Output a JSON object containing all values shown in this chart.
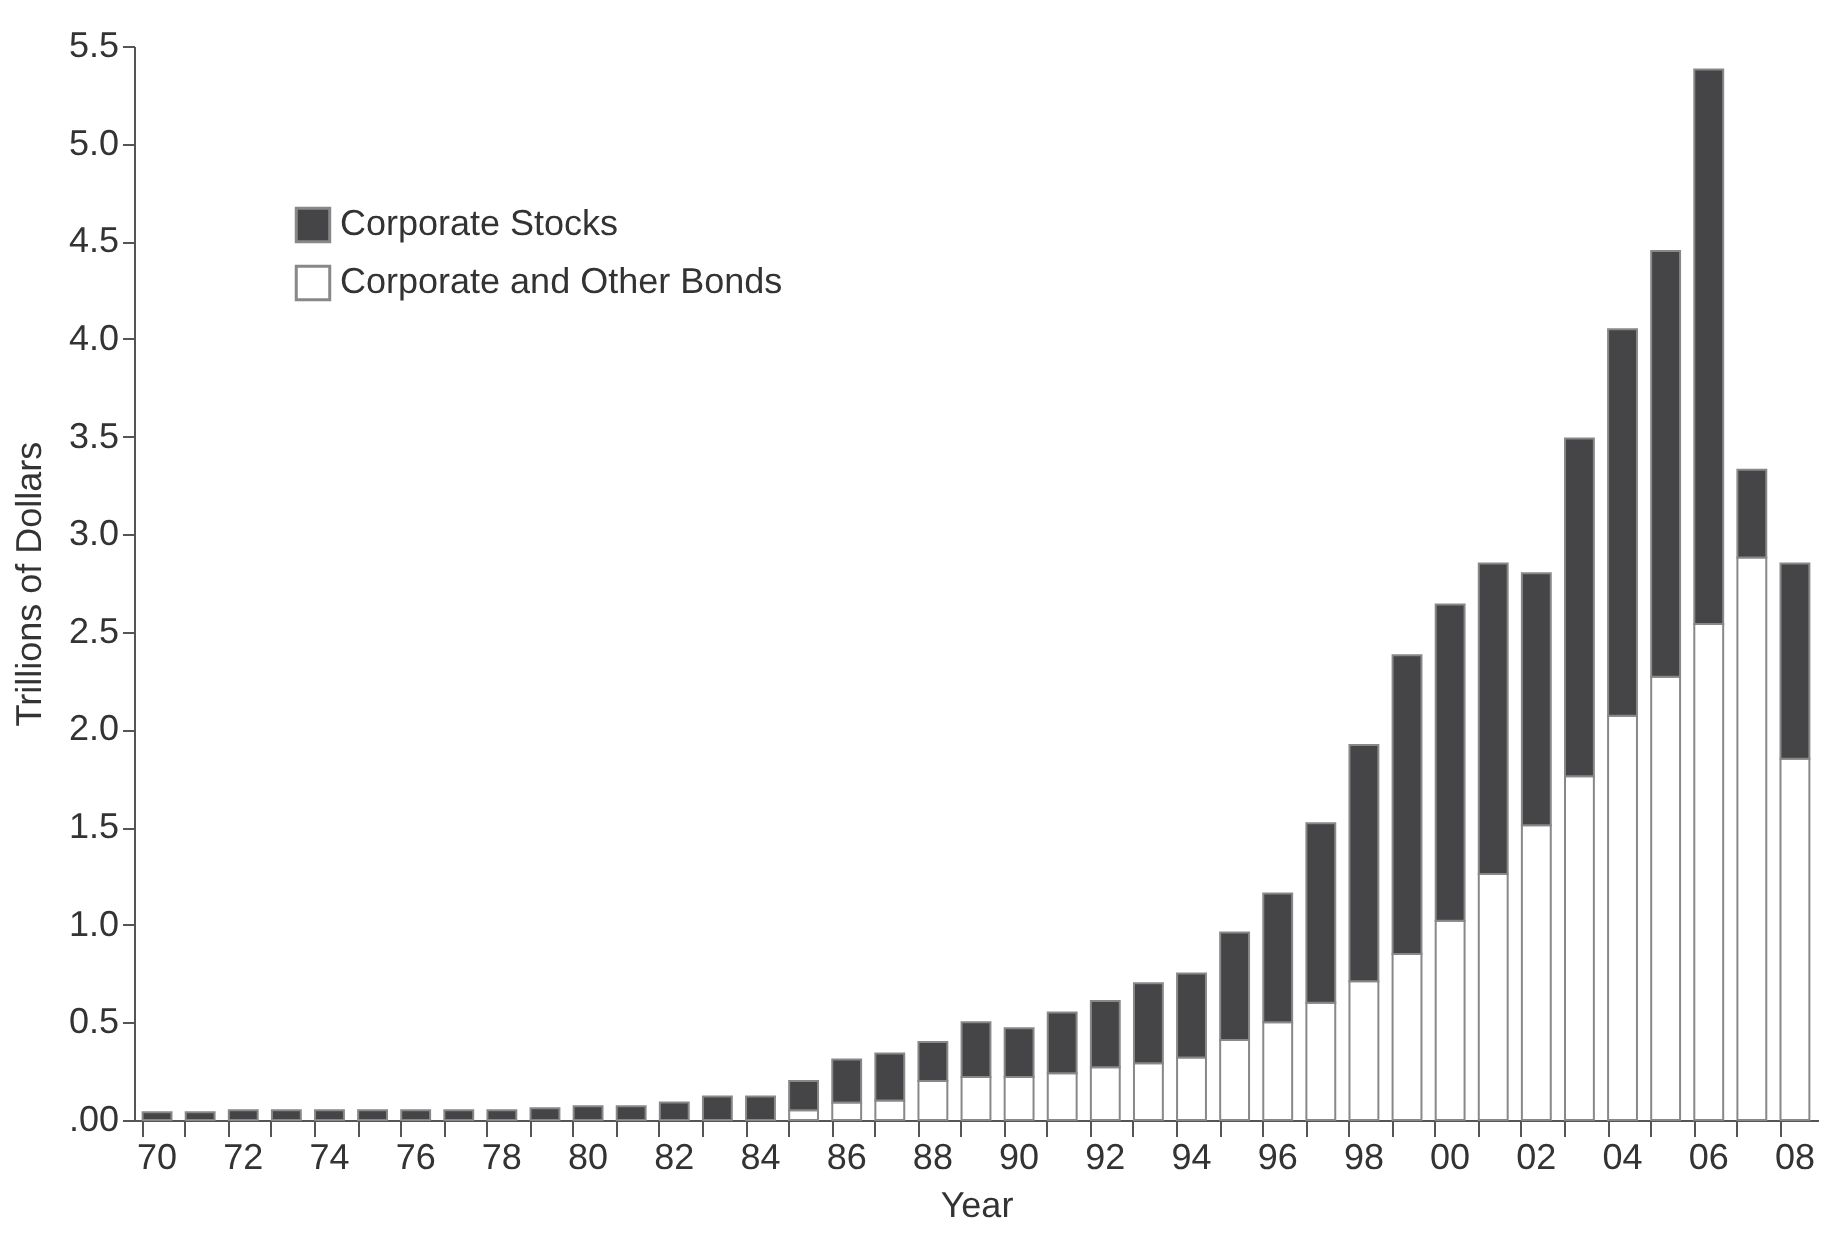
{
  "chart_data": {
    "type": "bar",
    "stacked": true,
    "xlabel": "Year",
    "ylabel": "Trillions of Dollars",
    "categories": [
      "70",
      null,
      "72",
      null,
      "74",
      null,
      "76",
      null,
      "78",
      null,
      "80",
      null,
      "82",
      null,
      "84",
      null,
      "86",
      null,
      "88",
      null,
      "90",
      null,
      "92",
      null,
      "94",
      null,
      "96",
      null,
      "98",
      null,
      "00",
      null,
      "02",
      null,
      "04",
      null,
      "06",
      null,
      "08"
    ],
    "series": [
      {
        "name": "Corporate and Other Bonds",
        "color": "#ffffff",
        "values": [
          0,
          0,
          0,
          0,
          0,
          0,
          0,
          0,
          0,
          0,
          0,
          0,
          0,
          0,
          0,
          0.05,
          0.09,
          0.1,
          0.2,
          0.22,
          0.22,
          0.24,
          0.27,
          0.29,
          0.32,
          0.41,
          0.5,
          0.6,
          0.71,
          0.85,
          1.02,
          1.26,
          1.51,
          1.76,
          2.07,
          2.27,
          2.54,
          2.88,
          1.85
        ]
      },
      {
        "name": "Corporate Stocks",
        "color": "#454547",
        "values": [
          0.04,
          0.04,
          0.05,
          0.05,
          0.05,
          0.05,
          0.05,
          0.05,
          0.05,
          0.06,
          0.07,
          0.07,
          0.09,
          0.12,
          0.12,
          0.15,
          0.22,
          0.24,
          0.2,
          0.28,
          0.25,
          0.31,
          0.34,
          0.41,
          0.43,
          0.55,
          0.66,
          0.92,
          1.21,
          1.53,
          1.62,
          1.59,
          1.29,
          1.73,
          1.98,
          2.18,
          2.84,
          0.45,
          1.0
        ]
      }
    ],
    "ylim": [
      0,
      5.5
    ],
    "yticks": [
      {
        "value": 0,
        "label": ".00"
      },
      0.5,
      {
        "value": 1,
        "label": "1.0"
      },
      1.5,
      {
        "value": 2,
        "label": "2.0"
      },
      2.5,
      {
        "value": 3,
        "label": "3.0"
      },
      3.5,
      {
        "value": 4,
        "label": "4.0"
      },
      4.5,
      {
        "value": 5,
        "label": "5.0"
      },
      5.5
    ],
    "grid": false,
    "legend": "top left"
  }
}
